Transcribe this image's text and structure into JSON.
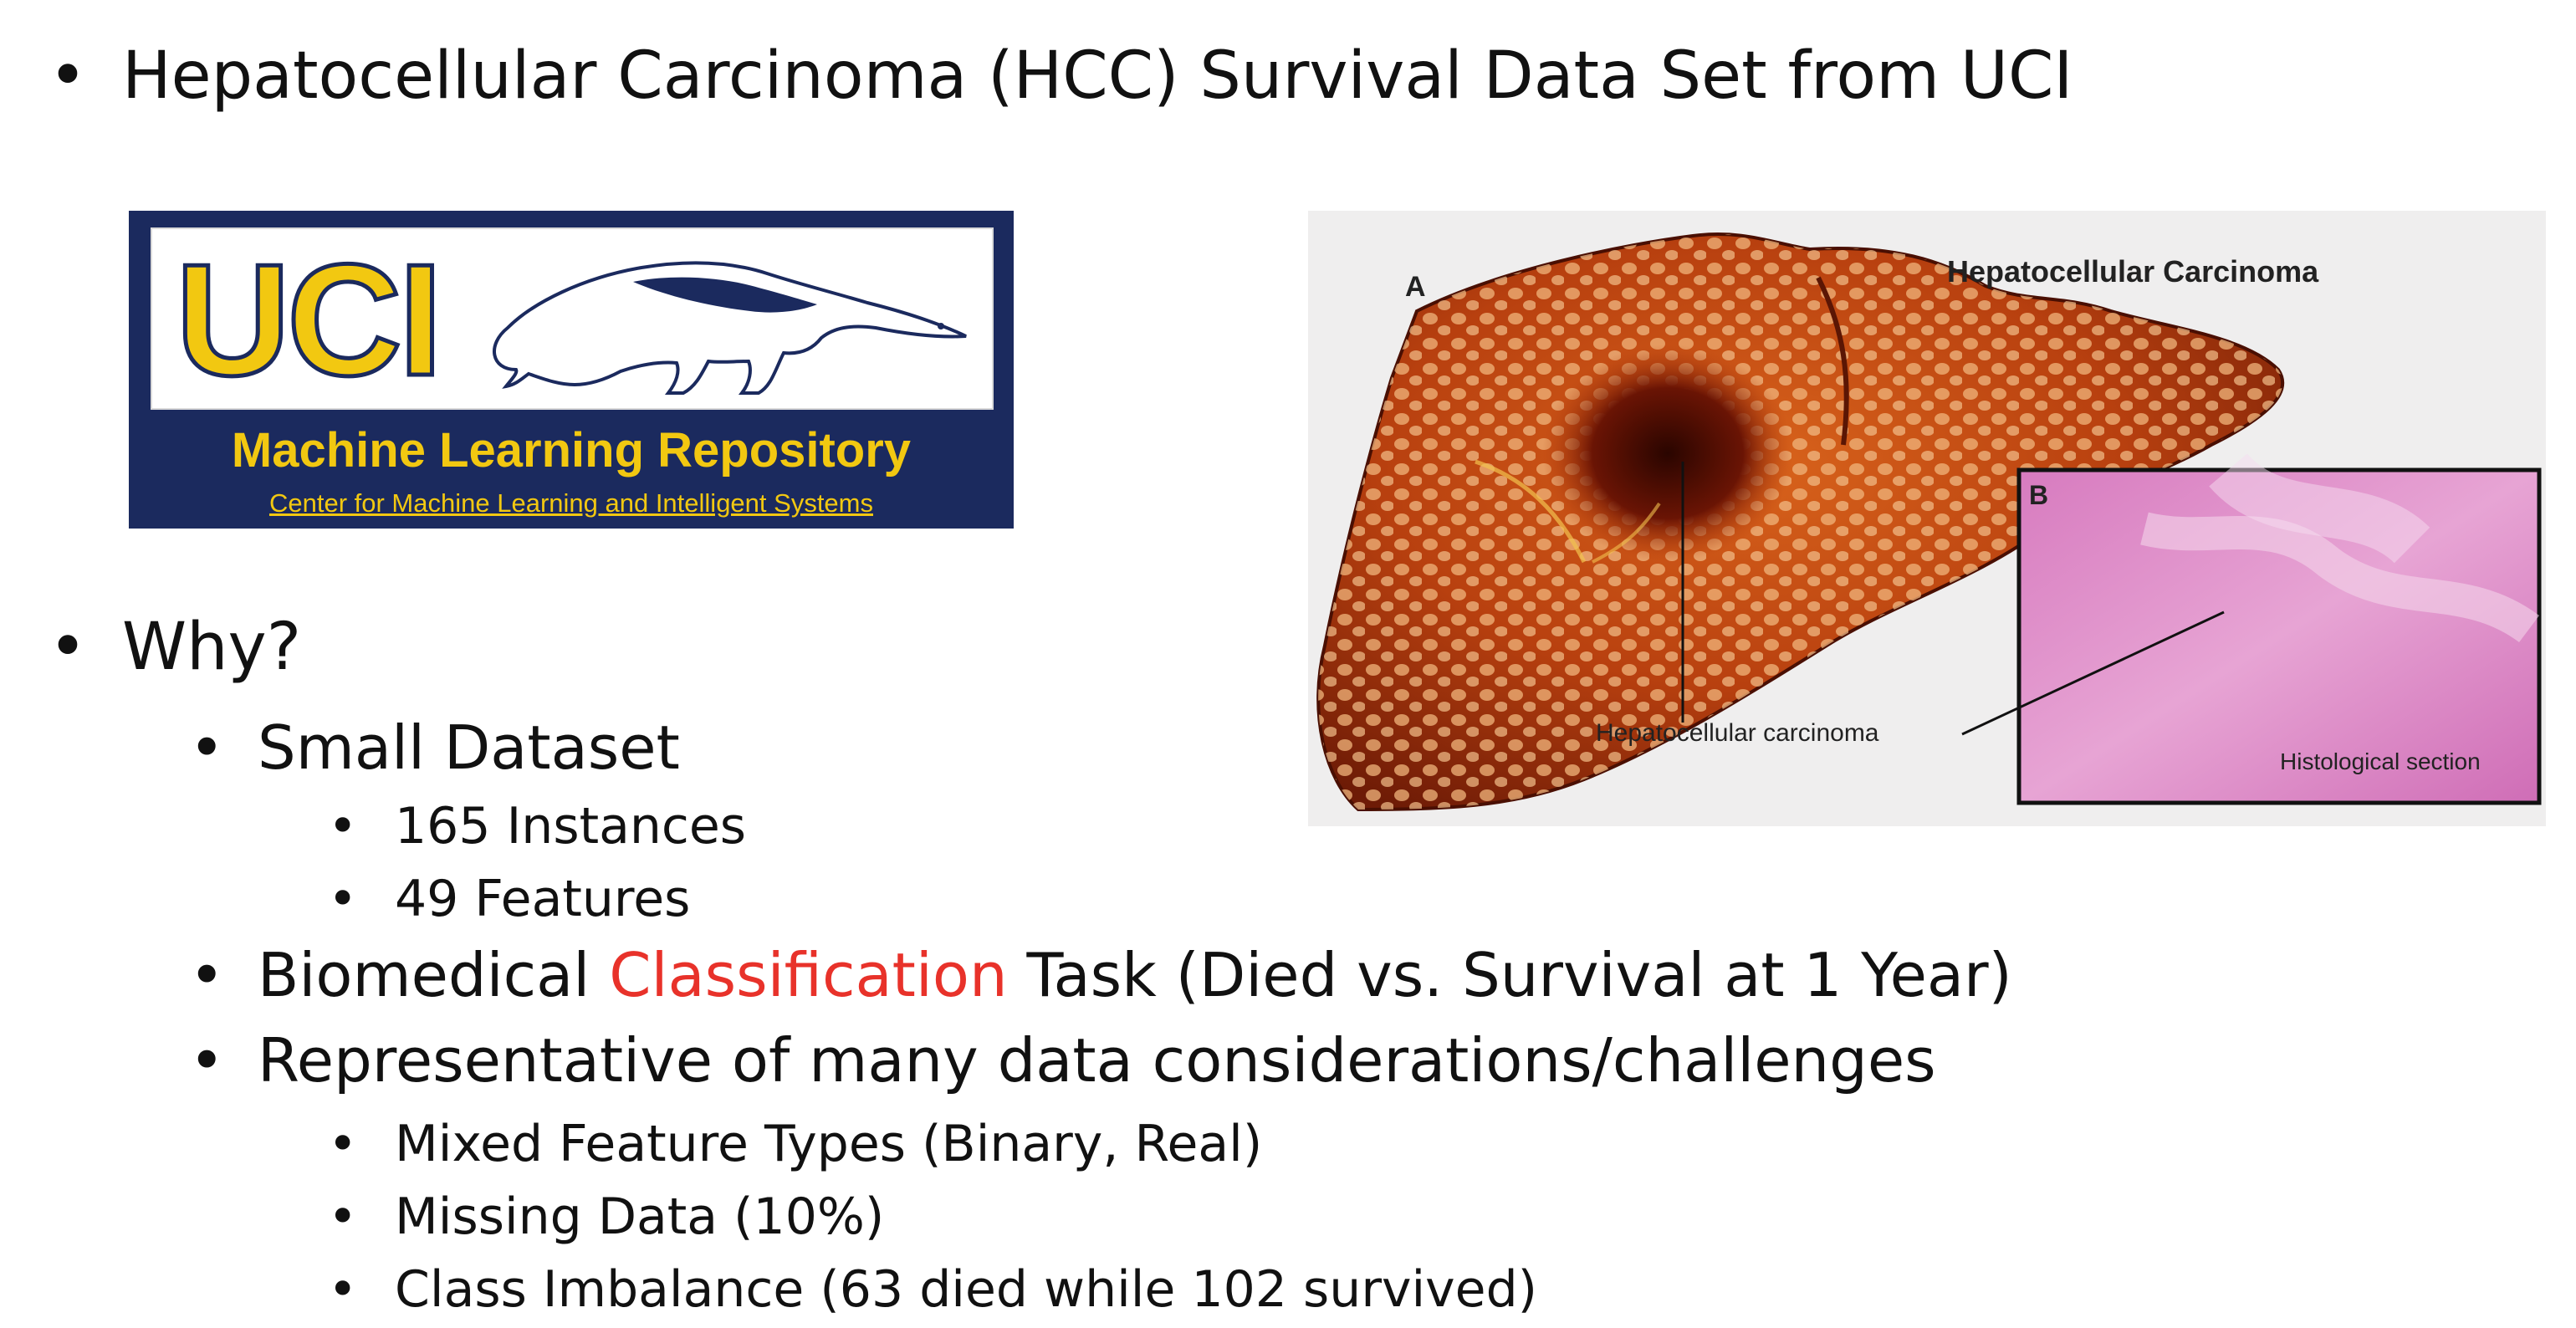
{
  "title_bullet": "Hepatocellular Carcinoma (HCC) Survival Data Set from UCI",
  "bullets": {
    "why": "Why?",
    "small_dataset": "Small Dataset",
    "instances": "165 Instances",
    "features": "49 Features",
    "biomedical_pre": "Biomedical ",
    "biomedical_accent": "Classification",
    "biomedical_post": " Task (Died vs. Survival at 1 Year)",
    "representative": "Representative of many data considerations/challenges",
    "mixed": "Mixed Feature Types (Binary, Real)",
    "missing": "Missing Data (10%)",
    "imbalance": "Class Imbalance (63 died while 102 survived)"
  },
  "bullet_glyph": "•",
  "uci_logo": {
    "letters": "UCI",
    "repository": "Machine Learning Repository",
    "center": "Center for Machine Learning and Intelligent Systems"
  },
  "liver_figure": {
    "label_a": "A",
    "title": "Hepatocellular Carcinoma",
    "label_b": "B",
    "callout": "Hepatocellular carcinoma",
    "histology": "Histological section"
  },
  "colors": {
    "accent": "#e8322a",
    "uci_blue": "#1b2a5e",
    "uci_gold": "#f2c811"
  }
}
